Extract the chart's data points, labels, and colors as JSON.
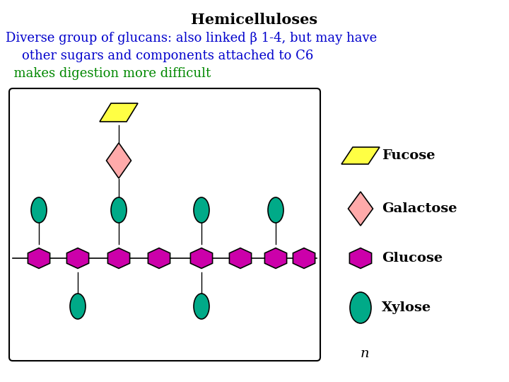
{
  "title": "Hemicelluloses",
  "title_color": "#000000",
  "title_fontsize": 15,
  "line1": "Diverse group of glucans: also linked β 1-4, but may have",
  "line2": "    other sugars and components attached to C6",
  "line3": "  makes digestion more difficult",
  "line1_color": "#0000cc",
  "line2_color": "#0000cc",
  "line3_color": "#008800",
  "text_fontsize": 13,
  "bg_color": "#ffffff",
  "glucose_color": "#cc00aa",
  "xylose_color": "#00aa88",
  "galactose_color": "#ffaaaa",
  "fucose_color": "#ffff44",
  "n_label": "n",
  "figsize": [
    7.2,
    5.4
  ],
  "dpi": 100
}
